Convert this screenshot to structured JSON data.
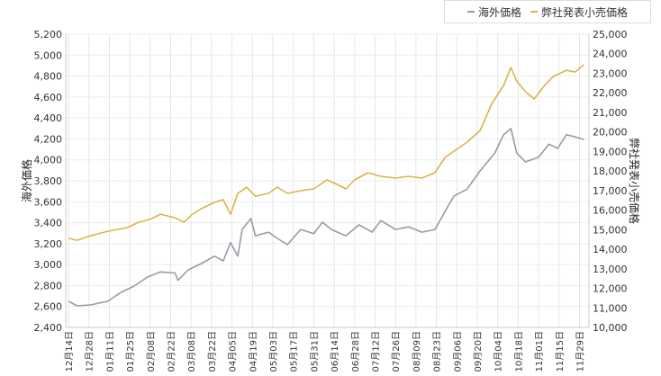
{
  "legend": {
    "items": [
      {
        "label": "海外価格",
        "color": "#9a9aa6"
      },
      {
        "label": "弊社発表小売価格",
        "color": "#d9b44a"
      }
    ]
  },
  "chart_data": {
    "type": "line",
    "title": "",
    "ylabel": "海外価格",
    "y2label": "弊社発表小売価格",
    "ylim": [
      2400,
      5200
    ],
    "y2lim": [
      10000,
      25000
    ],
    "yticks": [
      "2,400",
      "2,600",
      "2,800",
      "3,000",
      "3,200",
      "3,400",
      "3,600",
      "3,800",
      "4,000",
      "4,200",
      "4,400",
      "4,600",
      "4,800",
      "5,000",
      "5,200"
    ],
    "y2ticks": [
      "10,000",
      "11,000",
      "12,000",
      "13,000",
      "14,000",
      "15,000",
      "16,000",
      "17,000",
      "18,000",
      "19,000",
      "20,000",
      "21,000",
      "22,000",
      "23,000",
      "24,000",
      "25,000"
    ],
    "xticks": [
      "12月14日",
      "12月28日",
      "01月11日",
      "01月25日",
      "02月08日",
      "02月22日",
      "03月08日",
      "03月22日",
      "04月05日",
      "04月19日",
      "05月03日",
      "05月17日",
      "05月31日",
      "06月14日",
      "06月28日",
      "07月12日",
      "07月26日",
      "08月09日",
      "08月23日",
      "09月06日",
      "09月20日",
      "10月04日",
      "10月18日",
      "11月01日",
      "11月15日",
      "11月29日"
    ],
    "grid": true,
    "legend_position": "top-right",
    "series": [
      {
        "name": "海外価格",
        "axis": "left",
        "color": "#9a9aa6",
        "points": [
          [
            "12-14",
            2650
          ],
          [
            "12-20",
            2606
          ],
          [
            "12-29",
            2615
          ],
          [
            "01-10",
            2650
          ],
          [
            "01-19",
            2735
          ],
          [
            "01-28",
            2795
          ],
          [
            "02-06",
            2880
          ],
          [
            "02-15",
            2930
          ],
          [
            "02-25",
            2920
          ],
          [
            "02-27",
            2850
          ],
          [
            "03-06",
            2950
          ],
          [
            "03-15",
            3010
          ],
          [
            "03-24",
            3080
          ],
          [
            "03-30",
            3035
          ],
          [
            "04-04",
            3210
          ],
          [
            "04-09",
            3080
          ],
          [
            "04-12",
            3335
          ],
          [
            "04-18",
            3440
          ],
          [
            "04-21",
            3275
          ],
          [
            "04-30",
            3310
          ],
          [
            "05-06",
            3250
          ],
          [
            "05-13",
            3190
          ],
          [
            "05-22",
            3335
          ],
          [
            "05-31",
            3295
          ],
          [
            "06-06",
            3405
          ],
          [
            "06-12",
            3335
          ],
          [
            "06-22",
            3275
          ],
          [
            "07-01",
            3380
          ],
          [
            "07-10",
            3310
          ],
          [
            "07-16",
            3420
          ],
          [
            "07-26",
            3335
          ],
          [
            "08-04",
            3360
          ],
          [
            "08-13",
            3310
          ],
          [
            "08-22",
            3335
          ],
          [
            "08-29",
            3510
          ],
          [
            "09-04",
            3655
          ],
          [
            "09-13",
            3720
          ],
          [
            "09-22",
            3895
          ],
          [
            "10-02",
            4065
          ],
          [
            "10-08",
            4240
          ],
          [
            "10-13",
            4300
          ],
          [
            "10-17",
            4065
          ],
          [
            "10-23",
            3980
          ],
          [
            "11-01",
            4025
          ],
          [
            "11-08",
            4150
          ],
          [
            "11-14",
            4110
          ],
          [
            "11-20",
            4240
          ],
          [
            "11-26",
            4220
          ],
          [
            "12-02",
            4195
          ]
        ]
      },
      {
        "name": "弊社発表小売価格",
        "axis": "right",
        "color": "#d9b44a",
        "points": [
          [
            "12-14",
            14555
          ],
          [
            "12-20",
            14460
          ],
          [
            "12-29",
            14690
          ],
          [
            "01-10",
            14920
          ],
          [
            "01-23",
            15105
          ],
          [
            "01-31",
            15380
          ],
          [
            "02-09",
            15565
          ],
          [
            "02-15",
            15795
          ],
          [
            "02-25",
            15610
          ],
          [
            "03-03",
            15380
          ],
          [
            "03-09",
            15795
          ],
          [
            "03-15",
            16075
          ],
          [
            "03-24",
            16395
          ],
          [
            "03-30",
            16535
          ],
          [
            "04-04",
            15795
          ],
          [
            "04-09",
            16855
          ],
          [
            "04-15",
            17175
          ],
          [
            "04-21",
            16715
          ],
          [
            "04-30",
            16855
          ],
          [
            "05-06",
            17175
          ],
          [
            "05-13",
            16855
          ],
          [
            "05-22",
            16995
          ],
          [
            "05-31",
            17085
          ],
          [
            "06-09",
            17545
          ],
          [
            "06-16",
            17315
          ],
          [
            "06-22",
            17085
          ],
          [
            "06-28",
            17545
          ],
          [
            "07-07",
            17915
          ],
          [
            "07-16",
            17730
          ],
          [
            "07-26",
            17640
          ],
          [
            "08-04",
            17730
          ],
          [
            "08-13",
            17640
          ],
          [
            "08-22",
            17915
          ],
          [
            "08-29",
            18695
          ],
          [
            "09-04",
            19015
          ],
          [
            "09-13",
            19475
          ],
          [
            "09-22",
            20075
          ],
          [
            "09-30",
            21455
          ],
          [
            "10-08",
            22375
          ],
          [
            "10-13",
            23295
          ],
          [
            "10-17",
            22605
          ],
          [
            "10-23",
            22055
          ],
          [
            "10-29",
            21685
          ],
          [
            "11-05",
            22375
          ],
          [
            "11-11",
            22835
          ],
          [
            "11-20",
            23155
          ],
          [
            "11-26",
            23065
          ],
          [
            "12-02",
            23435
          ]
        ]
      }
    ]
  }
}
